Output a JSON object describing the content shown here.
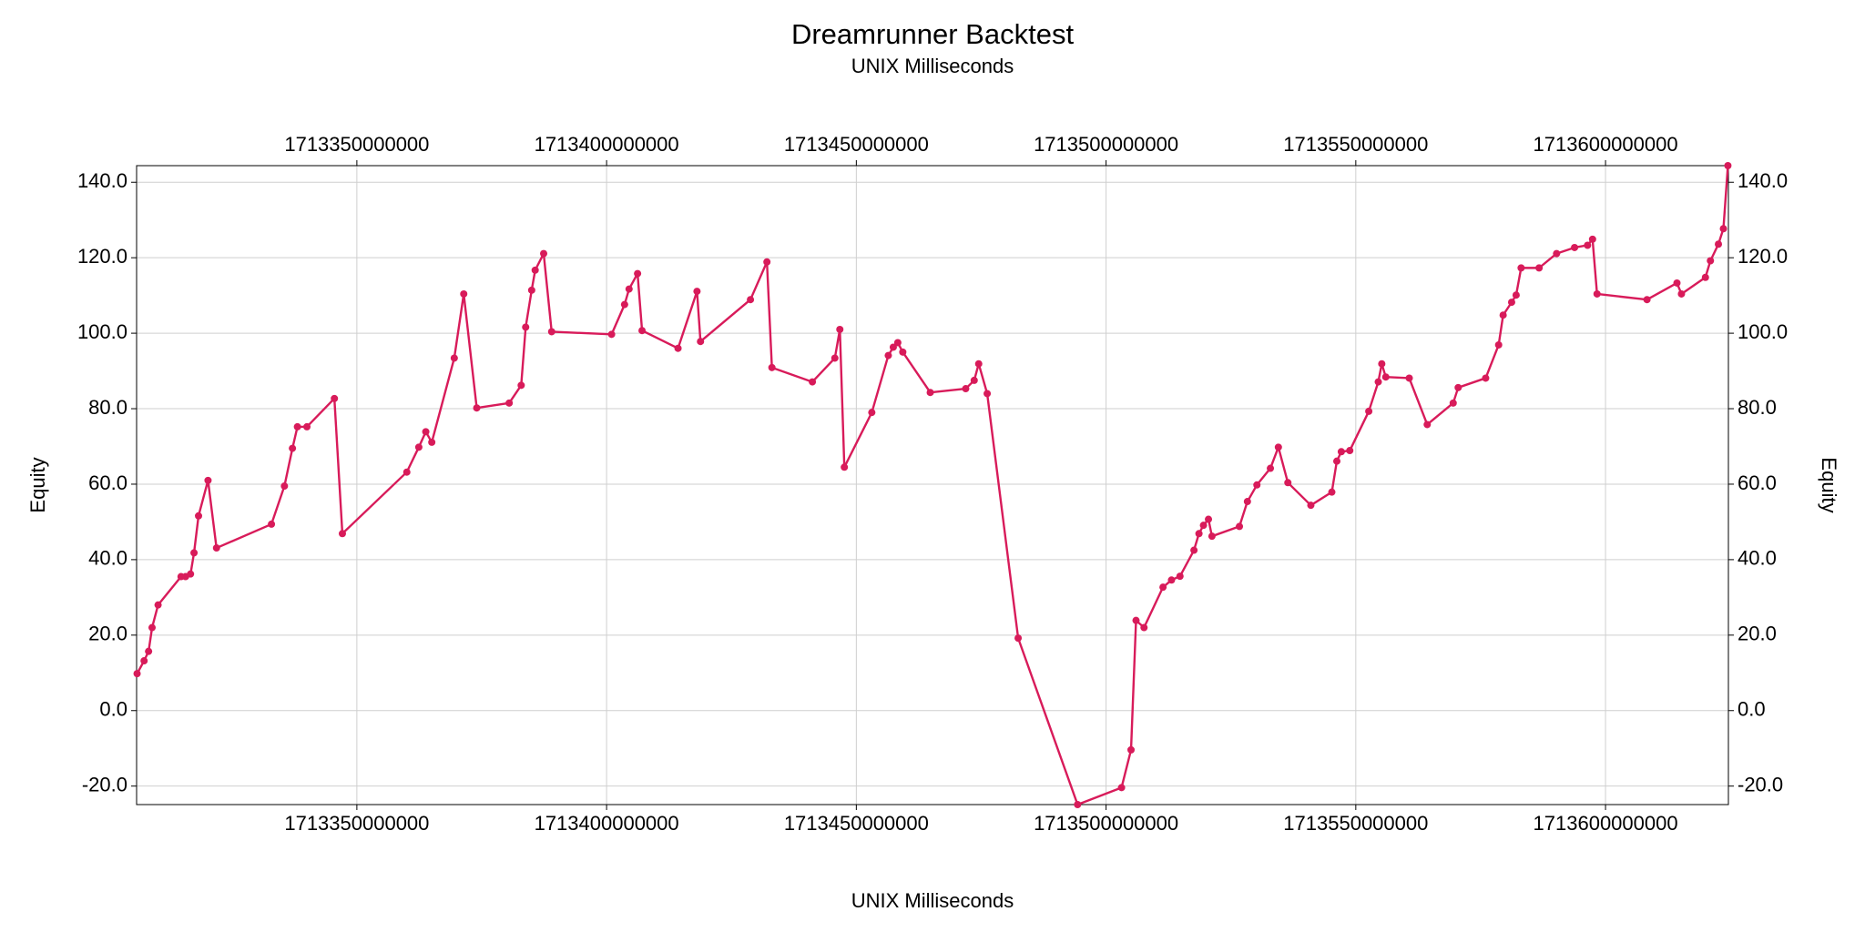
{
  "chart_data": {
    "type": "line",
    "title": "Dreamrunner Backtest",
    "subtitle": "UNIX Milliseconds",
    "x_label": "UNIX Milliseconds",
    "y_label": "Equity",
    "grid": true,
    "xlim": [
      1713305900000,
      1713624600000
    ],
    "xticks": [
      1713350000000,
      1713400000000,
      1713450000000,
      1713500000000,
      1713550000000,
      1713600000000
    ],
    "ylim": [
      -24.9,
      144.4
    ],
    "yticks": [
      {
        "value": -20,
        "label": "-20.0"
      },
      {
        "value": 0,
        "label": "0.0"
      },
      {
        "value": 20,
        "label": "20.0"
      },
      {
        "value": 40,
        "label": "40.0"
      },
      {
        "value": 60,
        "label": "60.0"
      },
      {
        "value": 80,
        "label": "80.0"
      },
      {
        "value": 100,
        "label": "100.0"
      },
      {
        "value": 120,
        "label": "120.0"
      },
      {
        "value": 140,
        "label": "140.0"
      }
    ],
    "x": [
      1713306000000,
      1713307400000,
      1713308300000,
      1713309000000,
      1713310200000,
      1713314800000,
      1713315700000,
      1713316700000,
      1713317400000,
      1713318300000,
      1713320200000,
      1713321900000,
      1713332900000,
      1713335500000,
      1713337100000,
      1713338100000,
      1713340000000,
      1713345500000,
      1713347100000,
      1713360000000,
      1713362400000,
      1713363800000,
      1713365000000,
      1713369500000,
      1713371400000,
      1713374000000,
      1713380500000,
      1713382900000,
      1713383800000,
      1713385000000,
      1713385700000,
      1713387400000,
      1713389000000,
      1713401000000,
      1713403600000,
      1713404500000,
      1713406200000,
      1713407100000,
      1713414300000,
      1713418100000,
      1713418800000,
      1713428800000,
      1713432100000,
      1713433100000,
      1713441200000,
      1713445700000,
      1713446700000,
      1713447600000,
      1713453100000,
      1713456400000,
      1713457400000,
      1713458300000,
      1713459300000,
      1713464800000,
      1713471900000,
      1713473600000,
      1713474500000,
      1713476200000,
      1713482400000,
      1713494300000,
      1713503100000,
      1713505000000,
      1713506000000,
      1713507600000,
      1713511400000,
      1713513100000,
      1713514800000,
      1713517600000,
      1713518600000,
      1713519500000,
      1713520500000,
      1713521200000,
      1713526700000,
      1713528300000,
      1713530200000,
      1713532900000,
      1713534500000,
      1713536400000,
      1713541000000,
      1713545200000,
      1713546200000,
      1713547100000,
      1713548800000,
      1713552600000,
      1713554500000,
      1713555200000,
      1713556000000,
      1713560700000,
      1713564300000,
      1713569500000,
      1713570500000,
      1713576000000,
      1713578600000,
      1713579500000,
      1713581200000,
      1713582100000,
      1713583100000,
      1713586700000,
      1713590200000,
      1713593800000,
      1713596400000,
      1713597400000,
      1713598300000,
      1713608300000,
      1713614300000,
      1713615200000,
      1713620000000,
      1713621000000,
      1713622600000,
      1713623600000,
      1713624500000
    ],
    "series": [
      {
        "name": "Equity",
        "color": "#d81b5a",
        "values": [
          9.8,
          13.2,
          15.7,
          22,
          28,
          35.5,
          35.5,
          36.2,
          41.8,
          51.6,
          61,
          43.1,
          49.4,
          59.5,
          69.5,
          75.2,
          75.2,
          82.7,
          46.9,
          63.2,
          69.8,
          73.9,
          71.1,
          93.4,
          110.4,
          80.2,
          81.5,
          86.2,
          101.6,
          111.4,
          116.7,
          121.1,
          100.4,
          99.7,
          107.6,
          111.7,
          115.8,
          100.7,
          96,
          111.1,
          97.8,
          108.9,
          118.9,
          90.9,
          87.1,
          93.4,
          101,
          64.5,
          79,
          94.1,
          96.3,
          97.5,
          95,
          84.3,
          85.3,
          87.5,
          91.9,
          84,
          19.2,
          -24.9,
          -20.4,
          -10.4,
          23.9,
          22,
          32.7,
          34.6,
          35.6,
          42.5,
          46.9,
          49.1,
          50.7,
          46.2,
          48.8,
          55.4,
          59.8,
          64.2,
          69.8,
          60.4,
          54.4,
          57.9,
          66.1,
          68.6,
          68.9,
          79.3,
          87.1,
          91.9,
          88.4,
          88.1,
          75.8,
          81.5,
          85.6,
          88.1,
          96.9,
          104.8,
          108.2,
          110.1,
          117.3,
          117.3,
          121.1,
          122.7,
          123.3,
          124.9,
          110.4,
          108.9,
          113.3,
          110.4,
          114.8,
          119.2,
          123.6,
          127.7,
          144.4
        ]
      }
    ]
  }
}
